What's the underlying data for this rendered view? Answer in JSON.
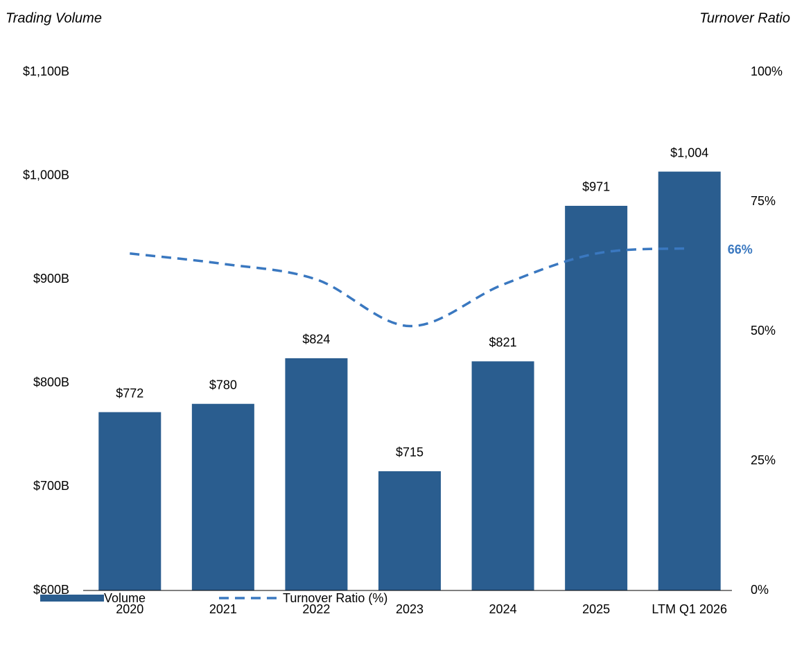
{
  "chart_data": {
    "type": "bar_line",
    "y_title": "Trading Volume",
    "y2_title": "Turnover Ratio",
    "categories": [
      "2020",
      "2021",
      "2022",
      "2023",
      "2024",
      "2025",
      "LTM Q1 2026"
    ],
    "series": [
      {
        "name": "Volume",
        "type": "bar",
        "color": "#2a5d8f",
        "values": [
          772,
          780,
          824,
          715,
          821,
          971,
          1004
        ],
        "value_labels": [
          "$772",
          "$780",
          "$824",
          "$715",
          "$821",
          "$971",
          "$1,004"
        ]
      },
      {
        "name": "Turnover Ratio (%)",
        "type": "line",
        "axis": "y2",
        "color": "#3a78c0",
        "dashed": true,
        "values": [
          65,
          63,
          60,
          51,
          59,
          65,
          66
        ],
        "value_labels": [
          null,
          null,
          null,
          null,
          null,
          null,
          "66%"
        ]
      }
    ],
    "ylim": [
      600,
      1100
    ],
    "yticks": [
      {
        "value": 600,
        "label": "$600B"
      },
      {
        "value": 700,
        "label": "$700B"
      },
      {
        "value": 800,
        "label": "$800B"
      },
      {
        "value": 900,
        "label": "$900B"
      },
      {
        "value": 1000,
        "label": "$1,000B"
      },
      {
        "value": 1100,
        "label": "$1,100B"
      }
    ],
    "y2lim": [
      0,
      100
    ],
    "y2ticks": [
      {
        "value": 0,
        "label": "0%"
      },
      {
        "value": 25,
        "label": "25%"
      },
      {
        "value": 50,
        "label": "50%"
      },
      {
        "value": 75,
        "label": "75%"
      },
      {
        "value": 100,
        "label": "100%"
      }
    ],
    "legend": "bottom-left"
  }
}
